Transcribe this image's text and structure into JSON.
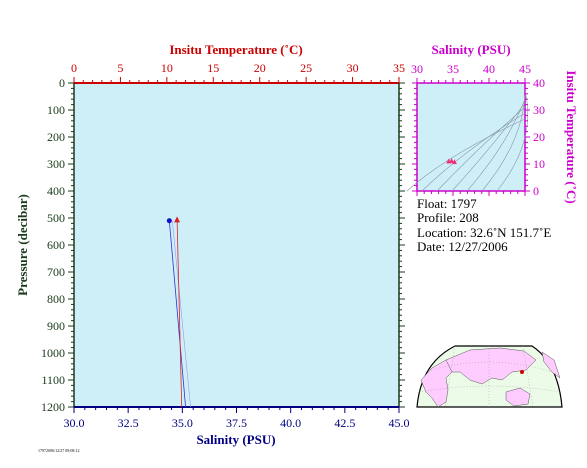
{
  "colors": {
    "plot_bg": "#cfeff8",
    "temperature": "#cc0000",
    "pressure": "#1a3a1a",
    "salinity": "#000080",
    "ts_axis": "#cc00cc",
    "salinity_profile": "#3333cc",
    "temperature_profile": "#dd2222",
    "land": "#ffccff",
    "ocean": "#ecfbe8"
  },
  "main_plot": {
    "top_axis": {
      "label": "Insitu Temperature (˚C)",
      "range": [
        0,
        35
      ],
      "ticks": [
        "0",
        "5",
        "10",
        "15",
        "20",
        "25",
        "30",
        "35"
      ]
    },
    "left_axis": {
      "label": "Pressure (decibar)",
      "range": [
        0,
        1200
      ],
      "ticks": [
        "0",
        "100",
        "200",
        "300",
        "400",
        "500",
        "600",
        "700",
        "800",
        "900",
        "1000",
        "1100",
        "1200"
      ]
    },
    "bottom_axis": {
      "label": "Salinity (PSU)",
      "range": [
        30.0,
        45.0
      ],
      "ticks": [
        "30.0",
        "32.5",
        "35.0",
        "37.5",
        "40.0",
        "42.5",
        "45.0"
      ]
    },
    "footer_note": "17972006/12/27 09:08:12"
  },
  "ts_plot": {
    "top_axis": {
      "label": "Salinity (PSU)",
      "range": [
        30,
        45
      ],
      "ticks": [
        "30",
        "35",
        "40",
        "45"
      ]
    },
    "right_axis": {
      "label": "Insitu Temperature (˚C)",
      "range": [
        0,
        40
      ],
      "ticks": [
        "0",
        "10",
        "20",
        "30",
        "40"
      ]
    }
  },
  "float_info": {
    "float": "Float:  1797",
    "profile": "Profile:  208",
    "location": "Location:  32.6˚N  151.7˚E",
    "date": "Date:  12/27/2006"
  },
  "chart_data": [
    {
      "type": "line",
      "name": "salinity-profile",
      "x_axis": "Salinity (PSU)",
      "pressure": [
        510,
        1200
      ],
      "salinity": [
        34.4,
        35.15
      ]
    },
    {
      "type": "line",
      "name": "temperature-profile",
      "x_axis": "Insitu Temperature (˚C)",
      "pressure": [
        505,
        1200
      ],
      "temperature": [
        11.1,
        11.6
      ]
    },
    {
      "type": "scatter",
      "name": "ts-diagram",
      "points": [
        {
          "s": 34.4,
          "t": 11.1
        },
        {
          "s": 34.8,
          "t": 11.3
        },
        {
          "s": 35.2,
          "t": 10.9
        }
      ]
    }
  ]
}
